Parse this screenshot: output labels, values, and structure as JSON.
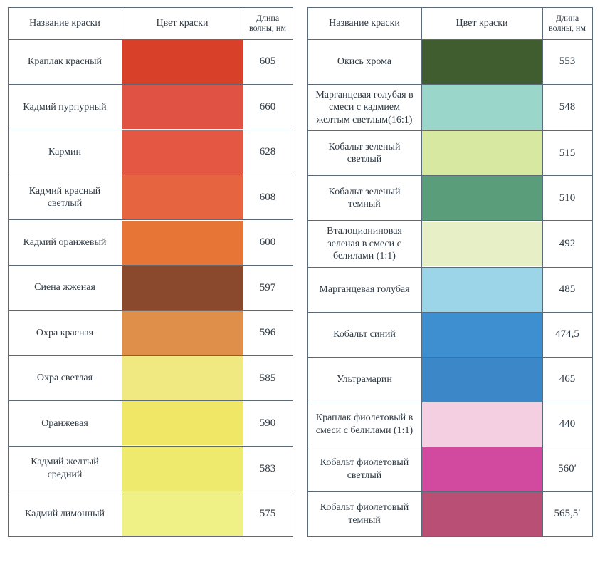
{
  "headers": {
    "name": "Название краски",
    "color": "Цвет краски",
    "wavelength": "Длина волны, нм"
  },
  "left": [
    {
      "name": "Краплак красный",
      "swatch": "#d8402a",
      "wave": "605"
    },
    {
      "name": "Кадмий пурпурный",
      "swatch": "#e05243",
      "wave": "660"
    },
    {
      "name": "Кармин",
      "swatch": "#e35743",
      "wave": "628"
    },
    {
      "name": "Кадмий красный светлый",
      "swatch": "#e6643f",
      "wave": "608"
    },
    {
      "name": "Кадмий оранжевый",
      "swatch": "#e77636",
      "wave": "600"
    },
    {
      "name": "Сиена жженая",
      "swatch": "#8a482c",
      "wave": "597"
    },
    {
      "name": "Охра красная",
      "swatch": "#e08f4b",
      "wave": "596"
    },
    {
      "name": "Охра светлая",
      "swatch": "#f0e982",
      "wave": "585"
    },
    {
      "name": "Оранжевая",
      "swatch": "#efe765",
      "wave": "590"
    },
    {
      "name": "Кадмий желтый средний",
      "swatch": "#edea6e",
      "wave": "583"
    },
    {
      "name": "Кадмий лимонный",
      "swatch": "#eff085",
      "wave": "575"
    }
  ],
  "right": [
    {
      "name": "Окись хрома",
      "swatch": "#3f5d2f",
      "wave": "553"
    },
    {
      "name": "Марганцевая голубая в смеси с кадмием желтым светлым(16:1)",
      "swatch": "#9ad6c9",
      "wave": "548"
    },
    {
      "name": "Кобальт зеленый светлый",
      "swatch": "#d7e8a0",
      "wave": "515"
    },
    {
      "name": "Кобальт зеленый темный",
      "swatch": "#5a9d7b",
      "wave": "510"
    },
    {
      "name": "Вталоцианиновая зеленая в смеси с белилами (1:1)",
      "swatch": "#e6efc6",
      "wave": "492"
    },
    {
      "name": "Марганцевая голубая",
      "swatch": "#9cd5e8",
      "wave": "485"
    },
    {
      "name": "Кобальт синий",
      "swatch": "#3d8fcf",
      "wave": "474,5"
    },
    {
      "name": "Ультрамарин",
      "swatch": "#3c87c8",
      "wave": "465"
    },
    {
      "name": "Краплак фиолетовый в смеси с белилами (1:1)",
      "swatch": "#f4cee1",
      "wave": "440"
    },
    {
      "name": "Кобальт фиолетовый светлый",
      "swatch": "#d14aa0",
      "wave": "560′"
    },
    {
      "name": "Кобальт фиолетовый темный",
      "swatch": "#b94f74",
      "wave": "565,5′"
    }
  ]
}
